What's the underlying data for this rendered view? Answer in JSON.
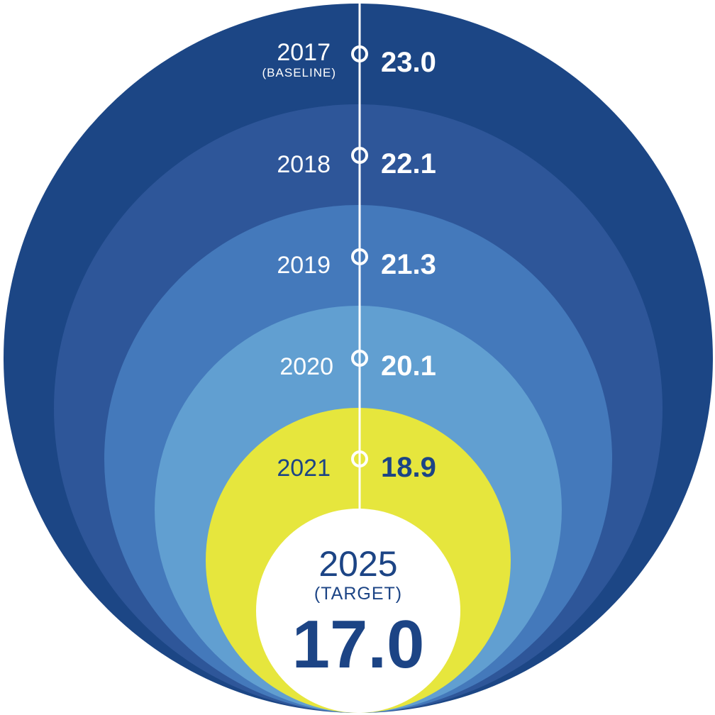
{
  "chart_data": {
    "type": "nested-circles",
    "title": "",
    "series": [
      {
        "year": "2017",
        "note": "(BASELINE)",
        "value": 23.0,
        "value_label": "23.0",
        "color": "#1c4685"
      },
      {
        "year": "2018",
        "note": "",
        "value": 22.1,
        "value_label": "22.1",
        "color": "#2e5699"
      },
      {
        "year": "2019",
        "note": "",
        "value": 21.3,
        "value_label": "21.3",
        "color": "#4479bb"
      },
      {
        "year": "2020",
        "note": "",
        "value": 20.1,
        "value_label": "20.1",
        "color": "#619fd1"
      },
      {
        "year": "2021",
        "note": "",
        "value": 18.9,
        "value_label": "18.9",
        "color": "#e6e63d"
      }
    ],
    "target": {
      "year": "2025",
      "note": "(TARGET)",
      "value": 17.0,
      "value_label": "17.0",
      "color": "#ffffff"
    },
    "colors": {
      "dark_text": "#1c4485",
      "light_text": "#ffffff",
      "axis_line": "#ffffff"
    }
  }
}
